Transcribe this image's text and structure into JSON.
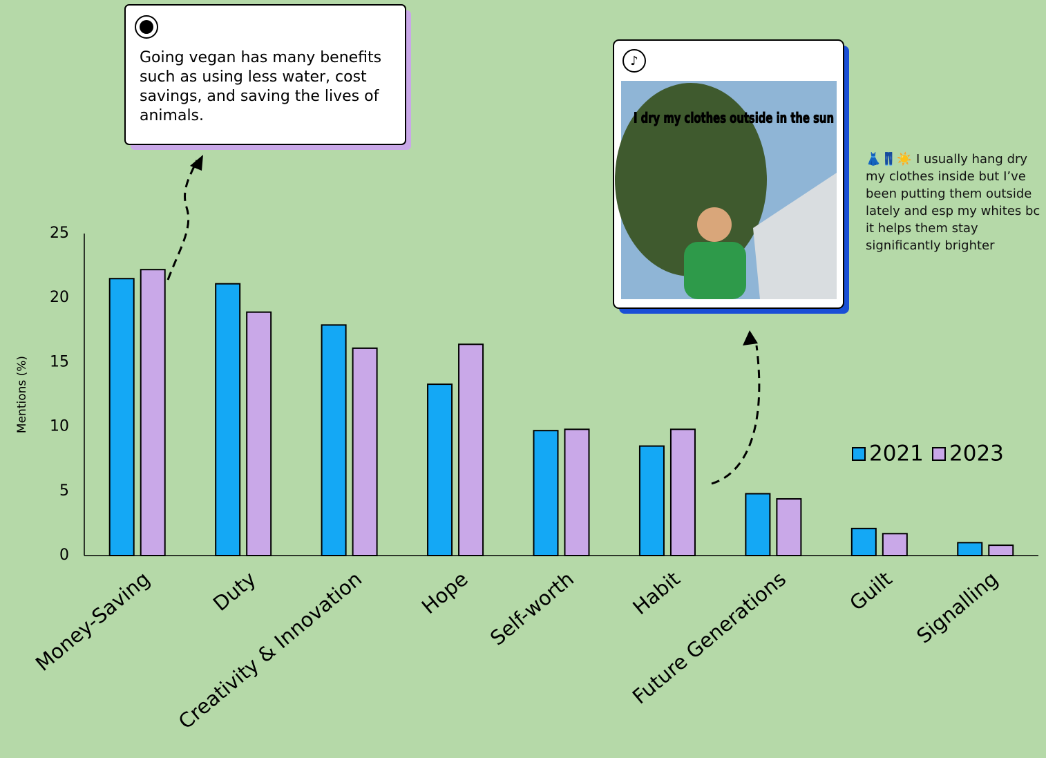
{
  "chart_data": {
    "type": "bar",
    "y_label": "Mentions (%)",
    "categories": [
      "Money-Saving",
      "Duty",
      "Creativity & Innovation",
      "Hope",
      "Self-worth",
      "Habit",
      "Future Generations",
      "Guilt",
      "Signalling"
    ],
    "series": [
      {
        "name": "2021",
        "color": "#14a8f5",
        "values": [
          21.5,
          21.1,
          17.9,
          13.3,
          9.7,
          8.5,
          4.8,
          2.1,
          1.0
        ]
      },
      {
        "name": "2023",
        "color": "#c9a8e8",
        "values": [
          22.2,
          18.9,
          16.1,
          16.4,
          9.8,
          9.8,
          4.4,
          1.7,
          0.8
        ]
      }
    ],
    "ylim": [
      0,
      25
    ],
    "yticks": [
      0,
      5,
      10,
      15,
      20,
      25
    ],
    "grid": false,
    "legend": "right",
    "annotations": [
      {
        "text": "Going vegan has many benefits such as using less water, cost savings, and saving the lives of animals."
      },
      {
        "text": "I dry my clothes outside in the sun"
      },
      {
        "text": "👗👖☀️ I usually hang dry my clothes inside but I’ve been putting them outside lately and esp my whites bc it helps them stay significantly brighter"
      }
    ]
  }
}
